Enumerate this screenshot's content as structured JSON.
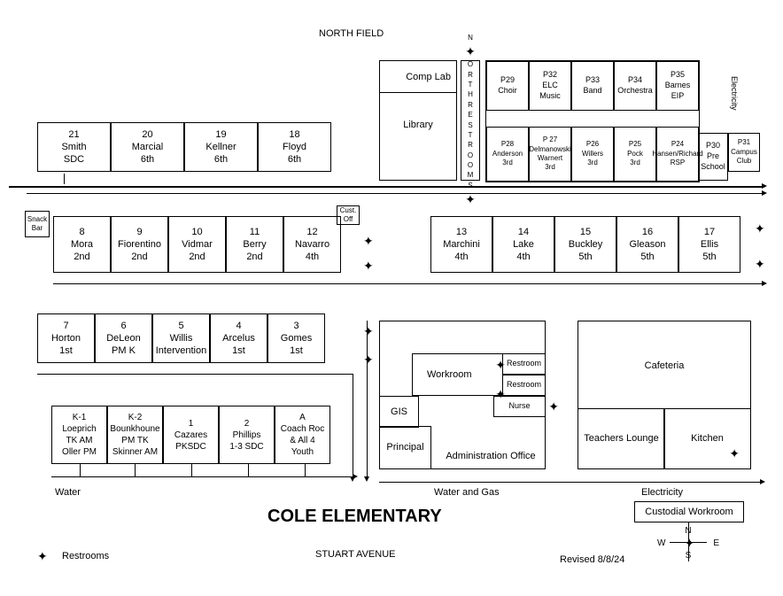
{
  "title": "COLE ELEMENTARY",
  "northField": "NORTH FIELD",
  "stuartAve": "STUART AVENUE",
  "revised": "Revised 8/8/24",
  "legend": {
    "restrooms": "Restrooms"
  },
  "row1": [
    {
      "num": "21",
      "name": "Smith",
      "sub": "SDC"
    },
    {
      "num": "20",
      "name": "Marcial",
      "sub": "6th"
    },
    {
      "num": "19",
      "name": "Kellner",
      "sub": "6th"
    },
    {
      "num": "18",
      "name": "Floyd",
      "sub": "6th"
    }
  ],
  "libraryBlock": {
    "comp": "Comp Lab",
    "library": "Library"
  },
  "northRestrooms": "NORTH RESTROOMS",
  "pTop": [
    {
      "num": "P29",
      "name": "Choir",
      "sub": ""
    },
    {
      "num": "P32",
      "name": "ELC",
      "sub": "Music"
    },
    {
      "num": "P33",
      "name": "Band",
      "sub": ""
    },
    {
      "num": "P34",
      "name": "Orchestra",
      "sub": ""
    },
    {
      "num": "P35",
      "name": "Barnes",
      "sub": "EIP"
    }
  ],
  "pBot": [
    {
      "num": "P28",
      "name": "Anderson",
      "sub": "3rd"
    },
    {
      "num": "P 27",
      "name": "Delmanowski",
      "sub": "Warnert",
      "sub2": "3rd"
    },
    {
      "num": "P26",
      "name": "Willers",
      "sub": "3rd"
    },
    {
      "num": "P25",
      "name": "Pock",
      "sub": "3rd"
    },
    {
      "num": "P24",
      "name": "Hansen/Richard",
      "sub": "RSP"
    }
  ],
  "p30": {
    "num": "P30",
    "name": "Pre",
    "sub": "School"
  },
  "p31": {
    "num": "P31",
    "name": "Campus",
    "sub": "Club"
  },
  "snackBar": "Snack Bar",
  "custOff": "Cust. Off",
  "row2": [
    {
      "num": "8",
      "name": "Mora",
      "sub": "2nd"
    },
    {
      "num": "9",
      "name": "Fiorentino",
      "sub": "2nd"
    },
    {
      "num": "10",
      "name": "Vidmar",
      "sub": "2nd"
    },
    {
      "num": "11",
      "name": "Berry",
      "sub": "2nd"
    },
    {
      "num": "12",
      "name": "Navarro",
      "sub": "4th"
    }
  ],
  "row2b": [
    {
      "num": "13",
      "name": "Marchini",
      "sub": "4th"
    },
    {
      "num": "14",
      "name": "Lake",
      "sub": "4th"
    },
    {
      "num": "15",
      "name": "Buckley",
      "sub": "5th"
    },
    {
      "num": "16",
      "name": "Gleason",
      "sub": "5th"
    },
    {
      "num": "17",
      "name": "Ellis",
      "sub": "5th"
    }
  ],
  "row3": [
    {
      "num": "7",
      "name": "Horton",
      "sub": "1st"
    },
    {
      "num": "6",
      "name": "DeLeon",
      "sub": "PM K"
    },
    {
      "num": "5",
      "name": "Willis",
      "sub": "Intervention"
    },
    {
      "num": "4",
      "name": "Arcelus",
      "sub": "1st"
    },
    {
      "num": "3",
      "name": "Gomes",
      "sub": "1st"
    }
  ],
  "row4": [
    {
      "num": "K-1",
      "name": "Loeprich",
      "sub": "TK AM",
      "sub2": "Oller PM"
    },
    {
      "num": "K-2",
      "name": "Bounkhoune",
      "sub": "PM TK",
      "sub2": "Skinner AM"
    },
    {
      "num": "1",
      "name": "Cazares",
      "sub": "PKSDC",
      "sub2": ""
    },
    {
      "num": "2",
      "name": "Phillips",
      "sub": "1-3 SDC",
      "sub2": ""
    },
    {
      "num": "A",
      "name": "Coach Roc",
      "sub": "& All 4",
      "sub2": "Youth"
    }
  ],
  "admin": {
    "workroom": "Workroom",
    "restroom": "Restroom",
    "gis": "GIS",
    "nurse": "Nurse",
    "principal": "Principal",
    "adminOffice": "Administration Office"
  },
  "cafBlock": {
    "cafeteria": "Cafeteria",
    "lounge": "Teachers Lounge",
    "kitchen": "Kitchen"
  },
  "custodial": "Custodial Workroom",
  "waterLabel": "Water",
  "waterGas": "Water and Gas",
  "electricity": "Electricity",
  "compass": {
    "n": "N",
    "s": "S",
    "e": "E",
    "w": "W"
  }
}
